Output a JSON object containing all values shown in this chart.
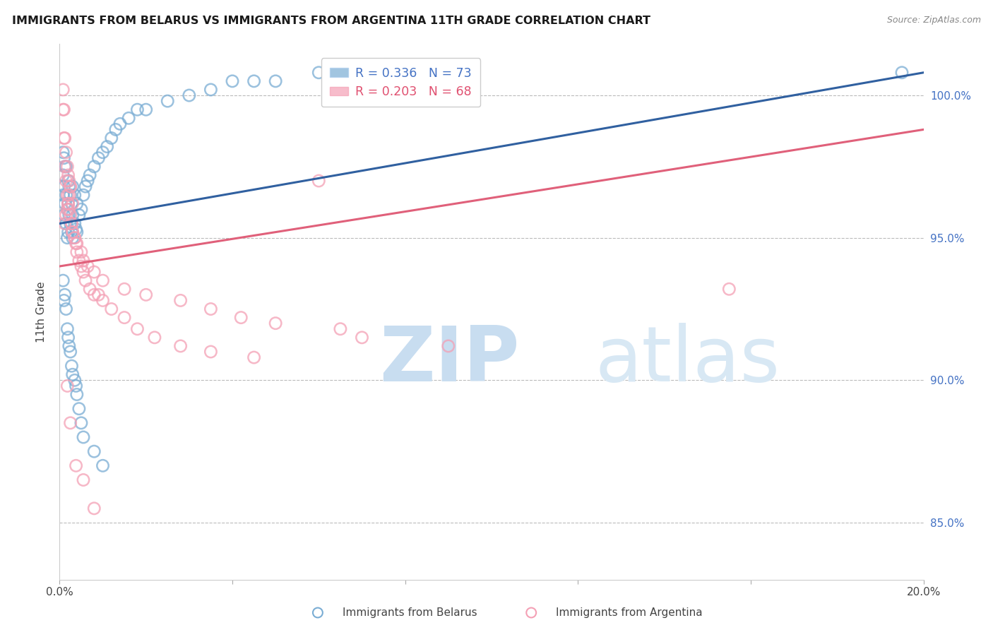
{
  "title": "IMMIGRANTS FROM BELARUS VS IMMIGRANTS FROM ARGENTINA 11TH GRADE CORRELATION CHART",
  "source": "Source: ZipAtlas.com",
  "ylabel": "11th Grade",
  "right_yticks": [
    85.0,
    90.0,
    95.0,
    100.0
  ],
  "right_ytick_labels": [
    "85.0%",
    "90.0%",
    "95.0%",
    "100.0%"
  ],
  "legend_blue_label": "Immigrants from Belarus",
  "legend_pink_label": "Immigrants from Argentina",
  "legend_r_blue": "R = 0.336",
  "legend_n_blue": "N = 73",
  "legend_r_pink": "R = 0.203",
  "legend_n_pink": "N = 68",
  "blue_color": "#7aadd4",
  "pink_color": "#f4a0b5",
  "line_blue_color": "#3060a0",
  "line_pink_color": "#e0607a",
  "watermark_zip_color": "#c8ddf0",
  "watermark_atlas_color": "#d8e8f4",
  "blue_line_x0": 0.0,
  "blue_line_x1": 20.0,
  "blue_line_y0": 95.5,
  "blue_line_y1": 100.8,
  "pink_line_x0": 0.0,
  "pink_line_x1": 20.0,
  "pink_line_y0": 94.0,
  "pink_line_y1": 98.8,
  "blue_x": [
    0.08,
    0.08,
    0.08,
    0.1,
    0.1,
    0.1,
    0.12,
    0.12,
    0.15,
    0.15,
    0.15,
    0.18,
    0.18,
    0.2,
    0.2,
    0.2,
    0.22,
    0.22,
    0.25,
    0.25,
    0.28,
    0.28,
    0.3,
    0.3,
    0.3,
    0.35,
    0.35,
    0.38,
    0.4,
    0.4,
    0.45,
    0.5,
    0.55,
    0.6,
    0.65,
    0.7,
    0.8,
    0.9,
    1.0,
    1.1,
    1.2,
    1.3,
    1.4,
    1.6,
    1.8,
    2.0,
    2.5,
    3.0,
    3.5,
    4.0,
    4.5,
    5.0,
    6.0,
    8.0,
    0.08,
    0.1,
    0.12,
    0.15,
    0.18,
    0.2,
    0.22,
    0.25,
    0.28,
    0.3,
    0.35,
    0.38,
    0.4,
    0.45,
    0.5,
    0.55,
    0.8,
    1.0,
    19.5
  ],
  "blue_y": [
    96.5,
    97.2,
    98.0,
    95.8,
    96.8,
    97.8,
    96.2,
    97.5,
    95.5,
    96.5,
    97.5,
    95.0,
    96.0,
    95.2,
    96.2,
    97.0,
    95.8,
    96.8,
    95.5,
    96.5,
    95.2,
    96.2,
    95.0,
    95.8,
    96.8,
    95.5,
    96.5,
    95.3,
    95.2,
    96.2,
    95.8,
    96.0,
    96.5,
    96.8,
    97.0,
    97.2,
    97.5,
    97.8,
    98.0,
    98.2,
    98.5,
    98.8,
    99.0,
    99.2,
    99.5,
    99.5,
    99.8,
    100.0,
    100.2,
    100.5,
    100.5,
    100.5,
    100.8,
    100.5,
    93.5,
    92.8,
    93.0,
    92.5,
    91.8,
    91.5,
    91.2,
    91.0,
    90.5,
    90.2,
    90.0,
    89.8,
    89.5,
    89.0,
    88.5,
    88.0,
    87.5,
    87.0,
    100.8
  ],
  "pink_x": [
    0.08,
    0.08,
    0.1,
    0.1,
    0.12,
    0.12,
    0.15,
    0.15,
    0.18,
    0.18,
    0.2,
    0.2,
    0.22,
    0.22,
    0.25,
    0.25,
    0.28,
    0.3,
    0.3,
    0.35,
    0.38,
    0.4,
    0.45,
    0.5,
    0.55,
    0.6,
    0.7,
    0.8,
    0.9,
    1.0,
    1.2,
    1.5,
    1.8,
    2.2,
    2.8,
    3.5,
    4.5,
    6.0,
    0.12,
    0.15,
    0.18,
    0.2,
    0.22,
    0.25,
    0.28,
    0.3,
    0.35,
    0.4,
    0.5,
    0.55,
    0.65,
    0.8,
    1.0,
    1.5,
    2.0,
    2.8,
    3.5,
    4.2,
    5.0,
    6.5,
    7.0,
    9.0,
    0.18,
    0.25,
    0.38,
    0.55,
    0.8,
    15.5
  ],
  "pink_y": [
    99.5,
    100.2,
    98.5,
    99.5,
    97.5,
    98.5,
    97.0,
    98.0,
    96.5,
    97.5,
    96.2,
    97.2,
    96.0,
    97.0,
    95.8,
    96.8,
    95.5,
    95.2,
    96.2,
    95.0,
    94.8,
    94.5,
    94.2,
    94.0,
    93.8,
    93.5,
    93.2,
    93.0,
    93.0,
    92.8,
    92.5,
    92.2,
    91.8,
    91.5,
    91.2,
    91.0,
    90.8,
    97.0,
    95.5,
    95.8,
    96.0,
    96.2,
    96.5,
    96.8,
    95.5,
    95.2,
    95.0,
    94.8,
    94.5,
    94.2,
    94.0,
    93.8,
    93.5,
    93.2,
    93.0,
    92.8,
    92.5,
    92.2,
    92.0,
    91.8,
    91.5,
    91.2,
    89.8,
    88.5,
    87.0,
    86.5,
    85.5,
    93.2
  ],
  "xmin": 0.0,
  "xmax": 20.0,
  "ymin": 83.0,
  "ymax": 101.8,
  "figsize": [
    14.06,
    8.92
  ],
  "dpi": 100,
  "xticks": [
    0,
    4,
    8,
    12,
    16,
    20
  ],
  "xtick_labels": [
    "0.0%",
    "",
    "",
    "",
    "",
    "20.0%"
  ]
}
